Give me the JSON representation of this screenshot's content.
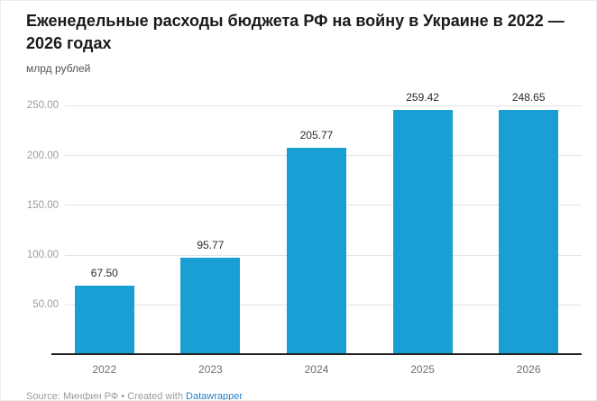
{
  "title": "Еженедельные расходы бюджета РФ на войну в Украине в 2022 — 2026 годах",
  "subtitle": "млрд рублей",
  "footer": {
    "prefix": "Source: Минфин РФ • Created with ",
    "link_label": "Datawrapper",
    "link_color": "#2d7fc0"
  },
  "colors": {
    "bar": "#1a9fd5",
    "axis_line": "#222222",
    "gridline": "#e4e4e4",
    "tick_label": "#9c9c9c"
  },
  "chart_data": {
    "type": "bar",
    "title": "Еженедельные расходы бюджета РФ на войну в Украине в 2022 — 2026 годах",
    "ylabel": "млрд рублей",
    "xlabel": "",
    "categories": [
      "2022",
      "2023",
      "2024",
      "2025",
      "2026"
    ],
    "values": [
      67.5,
      95.77,
      205.77,
      259.42,
      248.65
    ],
    "value_labels": [
      "67.50",
      "95.77",
      "205.77",
      "259.42",
      "248.65"
    ],
    "y_ticks": [
      "50.00",
      "100.00",
      "150.00",
      "200.00",
      "250.00"
    ],
    "y_tick_values": [
      50,
      100,
      150,
      200,
      250
    ],
    "ylim": [
      0,
      265
    ],
    "grid": true,
    "legend": false,
    "bar_color": "#1a9fd5"
  }
}
